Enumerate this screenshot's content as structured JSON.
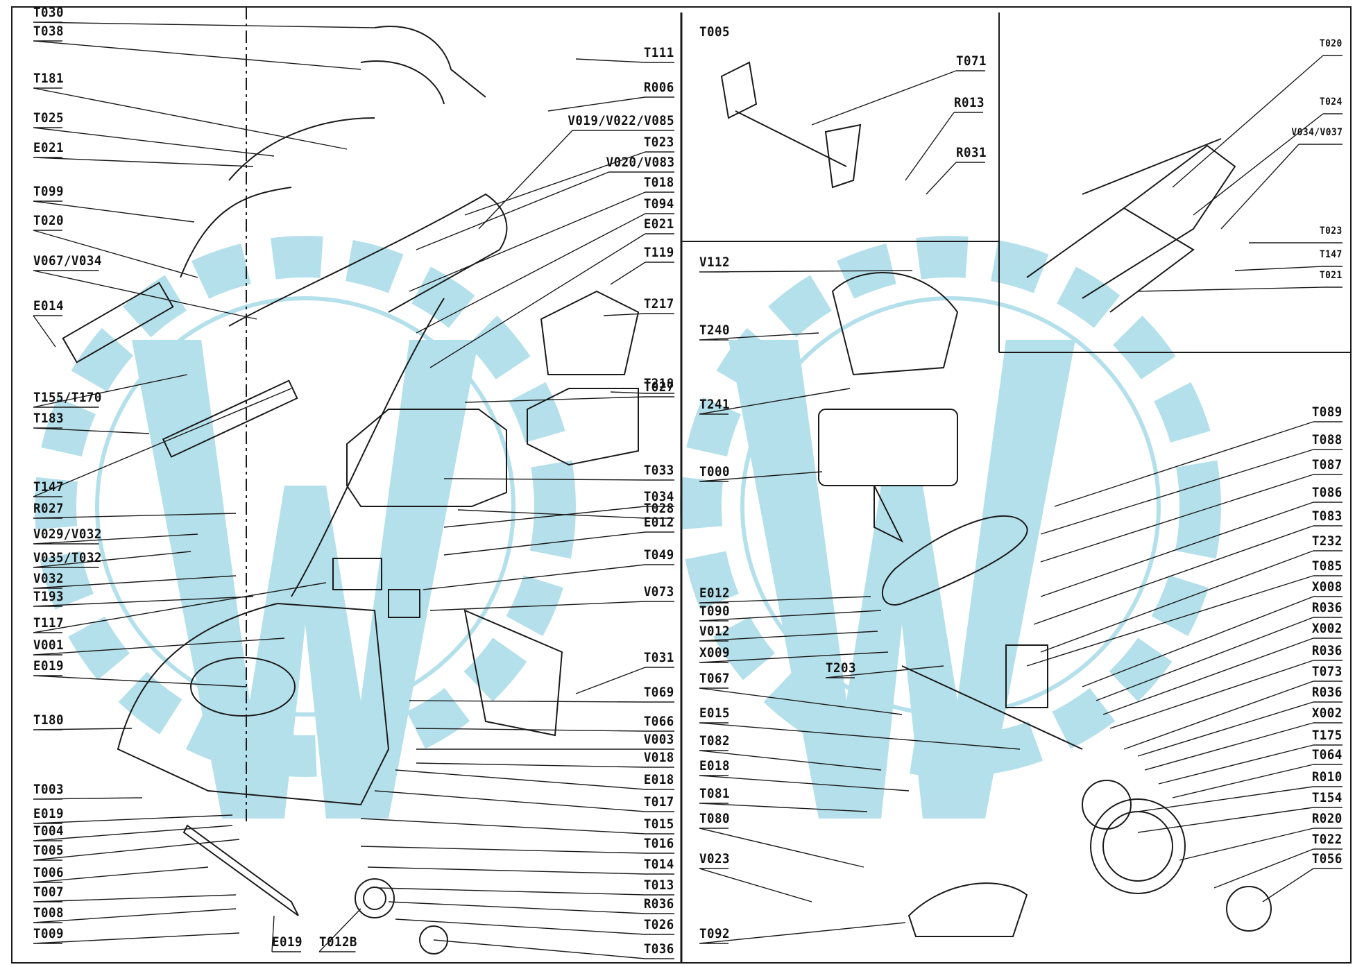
{
  "diagram": {
    "left_panel_labels": [
      "T030",
      "T038",
      "T181",
      "T025",
      "E021",
      "T099",
      "T020",
      "V067/V034",
      "E014",
      "T155/T170",
      "T183",
      "T147",
      "R027",
      "V029/V032",
      "V035/T032",
      "V032",
      "T193",
      "T117",
      "V001",
      "E019",
      "T180",
      "T003",
      "E019",
      "T004",
      "T005",
      "T006",
      "T007",
      "T008",
      "T009",
      "E019",
      "T012B"
    ],
    "center_labels": [
      "T111",
      "R006",
      "V019/V022/V085",
      "T023",
      "V020/V083",
      "T018",
      "T094",
      "E021",
      "T119",
      "T217",
      "T027",
      "T218",
      "T028",
      "T033",
      "T034",
      "E012",
      "T049",
      "V073",
      "T031",
      "T069",
      "T066",
      "V003",
      "V018",
      "E018",
      "T017",
      "T015",
      "T016",
      "T014",
      "T013",
      "R036",
      "T026",
      "T036"
    ],
    "top_middle_labels": [
      "T005",
      "T071",
      "R013",
      "R031"
    ],
    "top_right_labels": [
      "T020",
      "T024",
      "V034/V037",
      "T023",
      "T147",
      "T021"
    ],
    "right_left_labels": [
      "V112",
      "T240",
      "T241",
      "T000",
      "E012",
      "T090",
      "V012",
      "X009",
      "T203",
      "T067",
      "E015",
      "T082",
      "E018",
      "T081",
      "T080",
      "V023",
      "T092"
    ],
    "right_labels": [
      "T089",
      "T088",
      "T087",
      "T086",
      "T083",
      "T232",
      "T085",
      "X008",
      "R036",
      "X002",
      "R036",
      "T073",
      "R036",
      "X002",
      "T175",
      "T064",
      "R010",
      "T154",
      "R020",
      "T022",
      "T056"
    ]
  },
  "colors": {
    "line": "#1a1a1a",
    "watermark": "#a8dbe8",
    "background": "#ffffff"
  }
}
